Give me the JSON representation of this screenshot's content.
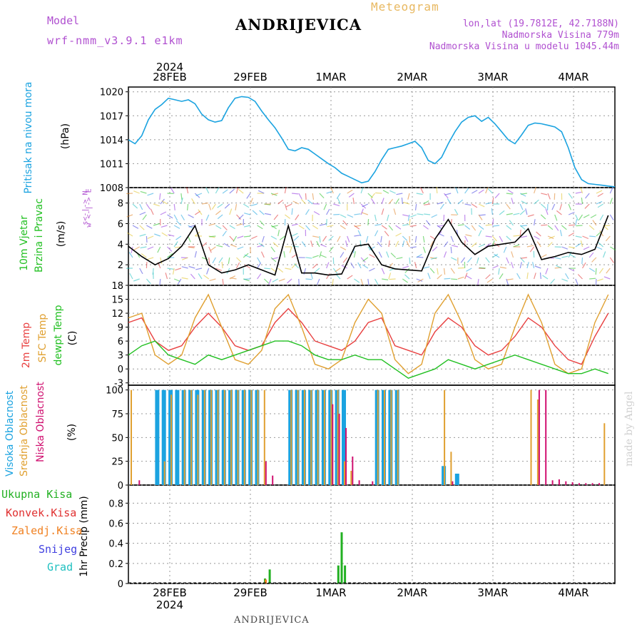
{
  "header": {
    "model_label": "Model",
    "model_name": "wrf-nmm_v3.9.1 e1km",
    "station": "ANDRIJEVICA",
    "meteogram": "Meteogram",
    "lonlat": "lon,lat (19.7812E, 42.7188N)",
    "elevation": "Nadmorska Visina 779m",
    "model_elevation": "Nadmorska Visina u modelu 1045.44m",
    "year_top": "2024",
    "footer_station": "ANDRIJEVICA",
    "watermark": "made by Angel"
  },
  "colors": {
    "pressure": "#1ba3e0",
    "temp2m": "#e84040",
    "sfc": "#e0a030",
    "dewpt": "#22c022",
    "high_cloud": "#1ba3e0",
    "mid_cloud": "#e0a030",
    "low_cloud": "#d01070",
    "total_precip": "#22b022",
    "conv_precip": "#e03030",
    "frz_precip": "#f08020",
    "snow": "#4040e0",
    "graupel": "#20c0c0",
    "header_purple": "#b050d0",
    "header_gold": "#e8b860"
  },
  "chart_data": [
    {
      "type": "line",
      "panel": "pressure",
      "ylabel": [
        "Pritisak na nivou mora",
        "(hPa)"
      ],
      "yticks": [
        1008,
        1011,
        1014,
        1017,
        1020
      ],
      "ylim": [
        1008,
        1020.6
      ],
      "x_ticks": [
        "28FEB",
        "29FEB",
        "1MAR",
        "2MAR",
        "3MAR",
        "4MAR"
      ],
      "series": [
        {
          "x": [
            0,
            1,
            2,
            3,
            4,
            5,
            6,
            7,
            8,
            9,
            10,
            11,
            12,
            13,
            14,
            15,
            16,
            17,
            18,
            19,
            20,
            21,
            22,
            23,
            24,
            25,
            26,
            27,
            28,
            29,
            30,
            31,
            32,
            33,
            34,
            35,
            36,
            37,
            38,
            39,
            40,
            41,
            42,
            43,
            44,
            45,
            46,
            47,
            48,
            49,
            50,
            51,
            52,
            53,
            54,
            55,
            56,
            57,
            58,
            59,
            60,
            61,
            62,
            63,
            64,
            65,
            66,
            67,
            68,
            69,
            70,
            71,
            72,
            73
          ],
          "values": [
            1014.0,
            1013.5,
            1014.5,
            1016.5,
            1017.8,
            1018.4,
            1019.2,
            1019.0,
            1018.8,
            1019.0,
            1018.5,
            1017.2,
            1016.5,
            1016.2,
            1016.4,
            1018.0,
            1019.2,
            1019.4,
            1019.3,
            1018.8,
            1017.6,
            1016.5,
            1015.5,
            1014.2,
            1012.8,
            1012.6,
            1013.0,
            1012.8,
            1012.2,
            1011.6,
            1011.0,
            1010.5,
            1009.8,
            1009.4,
            1009.0,
            1008.6,
            1008.8,
            1010.0,
            1011.5,
            1012.8,
            1013.0,
            1013.2,
            1013.5,
            1013.8,
            1013.0,
            1011.4,
            1011.0,
            1011.8,
            1013.5,
            1015.0,
            1016.2,
            1016.8,
            1017.0,
            1016.3,
            1016.8,
            1016.0,
            1015.0,
            1014.0,
            1013.5,
            1014.6,
            1015.8,
            1016.1,
            1016.0,
            1015.8,
            1015.6,
            1015.0,
            1013.0,
            1010.5,
            1009.0,
            1008.5,
            1008.4,
            1008.3,
            1008.2,
            1008.1
          ],
          "color_key": "pressure"
        }
      ]
    },
    {
      "type": "line",
      "panel": "wind",
      "ylabel": [
        "10m Vjetar",
        "Brzina i Pravac",
        "(m/s)"
      ],
      "legend_axis": [
        "w <-|-> E",
        "s<-|-> N"
      ],
      "yticks": [
        2,
        4,
        6,
        8
      ],
      "ylim": [
        0,
        9.5
      ],
      "series": [
        {
          "name": "speed",
          "x": [
            0,
            2,
            4,
            6,
            8,
            10,
            12,
            14,
            16,
            18,
            20,
            22,
            24,
            26,
            28,
            30,
            32,
            34,
            36,
            38,
            40,
            42,
            44,
            46,
            48,
            50,
            52,
            54,
            56,
            58,
            60,
            62,
            64,
            66,
            68,
            70,
            72
          ],
          "values": [
            3.8,
            2.8,
            2.0,
            2.6,
            3.8,
            5.8,
            2.0,
            1.2,
            1.5,
            2.0,
            1.5,
            1.0,
            5.8,
            1.2,
            1.2,
            1.0,
            1.1,
            3.8,
            4.0,
            2.0,
            1.6,
            1.5,
            1.4,
            4.5,
            6.4,
            4.2,
            3.0,
            3.8,
            4.0,
            4.2,
            5.5,
            2.5,
            2.8,
            3.2,
            3.0,
            3.5,
            6.8
          ]
        }
      ]
    },
    {
      "type": "line",
      "panel": "temperature",
      "ylabel": [
        "2m Temp",
        "SFC Temp",
        "dewpt Temp",
        "(C)"
      ],
      "yticks": [
        -3,
        0,
        3,
        6,
        9,
        12,
        15,
        18
      ],
      "ylim": [
        -3.5,
        18
      ],
      "series": [
        {
          "name": "2m Temp",
          "color_key": "temp2m",
          "x": [
            0,
            2,
            4,
            6,
            8,
            10,
            12,
            14,
            16,
            18,
            20,
            22,
            24,
            26,
            28,
            30,
            32,
            34,
            36,
            38,
            40,
            42,
            44,
            46,
            48,
            50,
            52,
            54,
            56,
            58,
            60,
            62,
            64,
            66,
            68,
            70,
            72
          ],
          "values": [
            10,
            11,
            6,
            4,
            5,
            9,
            12,
            9,
            5,
            4,
            5,
            10,
            13,
            10,
            6,
            5,
            4,
            6,
            10,
            11,
            5,
            4,
            3,
            8,
            11,
            9,
            5,
            3,
            4,
            7,
            11,
            9,
            5,
            2,
            1,
            7,
            12
          ]
        },
        {
          "name": "SFC Temp",
          "color_key": "sfc",
          "x": [
            0,
            2,
            4,
            6,
            8,
            10,
            12,
            14,
            16,
            18,
            20,
            22,
            24,
            26,
            28,
            30,
            32,
            34,
            36,
            38,
            40,
            42,
            44,
            46,
            48,
            50,
            52,
            54,
            56,
            58,
            60,
            62,
            64,
            66,
            68,
            70,
            72
          ],
          "values": [
            11,
            12,
            3,
            1,
            3,
            11,
            16,
            9,
            2,
            1,
            4,
            13,
            16,
            9,
            1,
            0,
            2,
            10,
            15,
            12,
            2,
            -1,
            1,
            12,
            16,
            10,
            2,
            0,
            1,
            9,
            16,
            10,
            1,
            -1,
            0,
            10,
            16
          ]
        },
        {
          "name": "dewpt Temp",
          "color_key": "dewpt",
          "x": [
            0,
            2,
            4,
            6,
            8,
            10,
            12,
            14,
            16,
            18,
            20,
            22,
            24,
            26,
            28,
            30,
            32,
            34,
            36,
            38,
            40,
            42,
            44,
            46,
            48,
            50,
            52,
            54,
            56,
            58,
            60,
            62,
            64,
            66,
            68,
            70,
            72
          ],
          "values": [
            3,
            5,
            6,
            3,
            2,
            1,
            3,
            2,
            3,
            4,
            5,
            6,
            6,
            5,
            3,
            2,
            2,
            3,
            2,
            2,
            0,
            -2,
            -1,
            0,
            2,
            1,
            0,
            1,
            2,
            3,
            2,
            1,
            0,
            -1,
            -1,
            0,
            -1
          ]
        }
      ]
    },
    {
      "type": "bar",
      "panel": "clouds",
      "ylabel": [
        "Visoka Oblacnost",
        "Srednja Oblacnost",
        "Niska Oblacnost",
        "(%)"
      ],
      "yticks": [
        0,
        25,
        50,
        75,
        100
      ],
      "ylim": [
        0,
        105
      ],
      "series": [
        {
          "name": "Visoka Oblacnost",
          "color_key": "high_cloud",
          "x": [
            4,
            5,
            6,
            7,
            8,
            9,
            10,
            11,
            12,
            13,
            14,
            15,
            16,
            17,
            18,
            19,
            24,
            25,
            26,
            27,
            28,
            29,
            30,
            31,
            32,
            37,
            38,
            39,
            40,
            47,
            49
          ],
          "values": [
            100,
            100,
            100,
            100,
            100,
            100,
            100,
            100,
            100,
            100,
            100,
            100,
            100,
            100,
            100,
            100,
            100,
            100,
            100,
            100,
            100,
            100,
            100,
            100,
            100,
            100,
            100,
            100,
            100,
            20,
            12
          ]
        },
        {
          "name": "Srednja Oblacnost",
          "color_key": "mid_cloud",
          "x": [
            0,
            5,
            6,
            8,
            9,
            10,
            11,
            12,
            13,
            14,
            15,
            16,
            17,
            18,
            19,
            20,
            24,
            25,
            26,
            27,
            28,
            29,
            30,
            31,
            32,
            33,
            37,
            38,
            39,
            40,
            47,
            48,
            60,
            61,
            71
          ],
          "values": [
            100,
            25,
            95,
            100,
            100,
            95,
            100,
            100,
            100,
            100,
            100,
            100,
            100,
            100,
            100,
            100,
            100,
            100,
            100,
            100,
            100,
            100,
            100,
            100,
            25,
            15,
            100,
            100,
            100,
            100,
            100,
            35,
            100,
            90,
            65
          ]
        },
        {
          "name": "Niska Oblacnost",
          "color_key": "low_cloud",
          "x": [
            1,
            20,
            21,
            30,
            31,
            32,
            33,
            34,
            36,
            48,
            61,
            62,
            63,
            64,
            65,
            66,
            67,
            68,
            69,
            70
          ],
          "values": [
            5,
            25,
            10,
            85,
            75,
            60,
            30,
            5,
            4,
            4,
            100,
            100,
            5,
            6,
            4,
            3,
            2,
            2,
            2,
            2
          ]
        }
      ]
    },
    {
      "type": "bar",
      "panel": "precip",
      "ylabel": [
        "1hr Precip (mm)"
      ],
      "legend": [
        "Ukupna Kisa",
        "Konvek.Kisa",
        "Zaledj.Kisa",
        "Snijeg",
        "Grad"
      ],
      "yticks": [
        0,
        0.2,
        0.4,
        0.6,
        0.8
      ],
      "ylim": [
        0,
        0.98
      ],
      "series": [
        {
          "name": "Ukupna Kisa",
          "color_key": "total_precip",
          "x": [
            20.5,
            21.2,
            31.5,
            32.0,
            32.5
          ],
          "values": [
            0.05,
            0.14,
            0.18,
            0.51,
            0.18
          ]
        },
        {
          "name": "Zaledj.Kisa",
          "color_key": "frz_precip",
          "x": [
            20.6
          ],
          "values": [
            0.04
          ]
        }
      ]
    }
  ]
}
